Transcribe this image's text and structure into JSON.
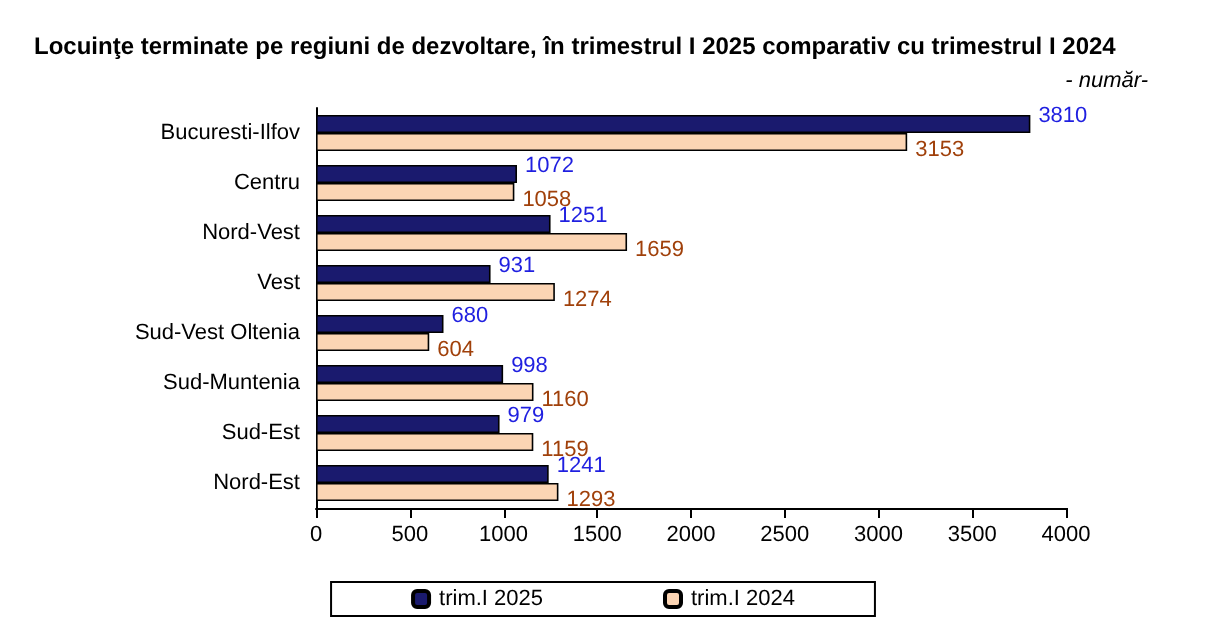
{
  "chart_data": {
    "type": "bar",
    "orientation": "horizontal",
    "title": "Locuinţe terminate pe regiuni de dezvoltare, în trimestrul I 2025 comparativ cu trimestrul I 2024",
    "subtitle": "- număr-",
    "categories": [
      "Bucuresti-Ilfov",
      "Centru",
      "Nord-Vest",
      "Vest",
      "Sud-Vest Oltenia",
      "Sud-Muntenia",
      "Sud-Est",
      "Nord-Est"
    ],
    "series": [
      {
        "name": "trim.I 2025",
        "color": "#1a1a6e",
        "values": [
          3810,
          1072,
          1251,
          931,
          680,
          998,
          979,
          1241
        ]
      },
      {
        "name": "trim.I 2024",
        "color": "#fcd5b4",
        "values": [
          3153,
          1058,
          1659,
          1274,
          604,
          1160,
          1159,
          1293
        ]
      }
    ],
    "xlim": [
      0,
      4000
    ],
    "xticks": [
      0,
      500,
      1000,
      1500,
      2000,
      2500,
      3000,
      3500,
      4000
    ],
    "data_labels": true,
    "grid": false,
    "legend": "bottom"
  }
}
